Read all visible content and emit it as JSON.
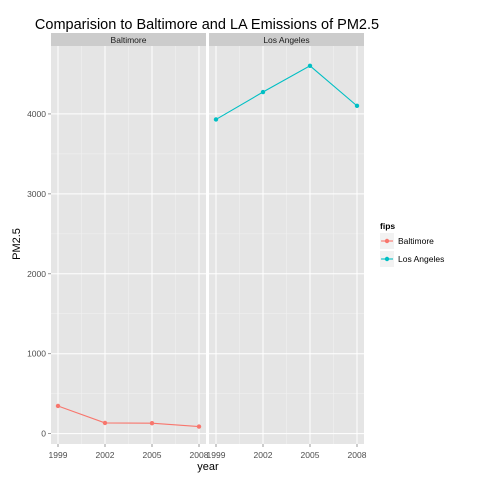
{
  "chart_data": {
    "type": "line",
    "title": "Comparision to Baltimore and LA Emissions of PM2.5",
    "xlabel": "year",
    "ylabel": "PM2.5",
    "x": [
      1999,
      2002,
      2005,
      2008
    ],
    "x_tick_labels": [
      "1999",
      "2002",
      "2005",
      "2008"
    ],
    "ylim": [
      -130,
      4850
    ],
    "y_ticks": [
      0,
      1000,
      2000,
      3000,
      4000
    ],
    "y_tick_labels": [
      "0",
      "1000",
      "2000",
      "3000",
      "4000"
    ],
    "grid": true,
    "legend": {
      "title": "fips",
      "position": "right"
    },
    "series": [
      {
        "name": "Baltimore",
        "color": "#f8766d",
        "values": [
          346,
          134,
          130,
          88
        ]
      },
      {
        "name": "Los Angeles",
        "color": "#00bfc4",
        "values": [
          3931,
          4274,
          4602,
          4101
        ]
      }
    ],
    "facets": [
      {
        "label": "Baltimore",
        "series_index": 0
      },
      {
        "label": "Los Angeles",
        "series_index": 1
      }
    ]
  }
}
